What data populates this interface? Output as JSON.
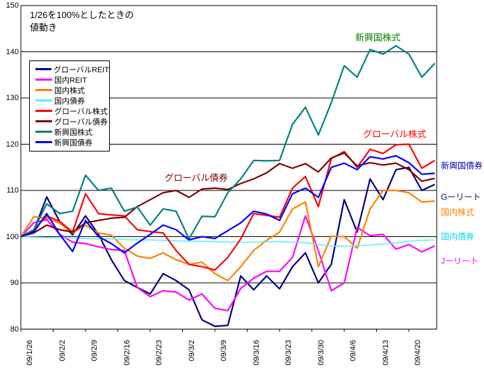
{
  "title": {
    "line1": "1/26を100%としたときの",
    "line2": "値動き"
  },
  "chart_data": {
    "type": "line",
    "title": "1/26を100%としたときの値動き",
    "y_axis": {
      "min": 80,
      "max": 150,
      "step": 10,
      "ticks": [
        150,
        140,
        130,
        120,
        110,
        100,
        90,
        80
      ]
    },
    "x_axis": {
      "tick_labels": [
        "09/1/26",
        "09/2/2",
        "09/2/9",
        "09/2/16",
        "09/2/23",
        "09/3/2",
        "09/3/9",
        "09/3/16",
        "09/3/23",
        "09/3/30",
        "09/4/6",
        "09/4/13",
        "09/4/20"
      ],
      "days_per_tick": 5,
      "total_days": 64
    },
    "sample_days": [
      0,
      2,
      4,
      6,
      8,
      10,
      12,
      14,
      16,
      18,
      20,
      22,
      24,
      26,
      28,
      30,
      32,
      34,
      36,
      38,
      40,
      42,
      44,
      46,
      48,
      50,
      52,
      54,
      56,
      58,
      60,
      62,
      64
    ],
    "series": [
      {
        "name": "グローバルREIT",
        "color": "#000080",
        "values": [
          100,
          101.3,
          108.6,
          103.3,
          100.4,
          104.5,
          100.5,
          95,
          90.5,
          89,
          87.6,
          92,
          90.5,
          88.5,
          82,
          80.6,
          80.8,
          91.5,
          88.5,
          91.5,
          88.7,
          93.5,
          96.5,
          90,
          94,
          108,
          101,
          112.5,
          108,
          114.5,
          115,
          110,
          111.3
        ]
      },
      {
        "name": "国内REIT",
        "color": "#FF00FF",
        "values": [
          100,
          103,
          103.7,
          100.5,
          98.8,
          98.5,
          97.8,
          97.2,
          97,
          89,
          87,
          88.3,
          88,
          86.3,
          87.6,
          84.5,
          84,
          88.8,
          91,
          92.5,
          92.5,
          95.5,
          104.5,
          97,
          88.3,
          90,
          102,
          100.2,
          100.5,
          97.3,
          98.3,
          96.7,
          98
        ]
      },
      {
        "name": "国内株式",
        "color": "#FF8000",
        "values": [
          100,
          104.3,
          104,
          102.9,
          100.8,
          102.5,
          100.8,
          100.3,
          97.5,
          95.8,
          95.3,
          96.5,
          95,
          94,
          94.5,
          92,
          90.5,
          93.5,
          97,
          99.2,
          101,
          106,
          107.5,
          93.5,
          100.1,
          100,
          97.5,
          106,
          110,
          110,
          109.5,
          107.5,
          107.7
        ]
      },
      {
        "name": "国内債券",
        "color": "#55EEFF",
        "values": [
          100,
          99.9,
          99.8,
          99.7,
          99.7,
          99.6,
          99.5,
          99.5,
          99.4,
          99.3,
          99.3,
          99.2,
          99.1,
          99,
          99,
          98.9,
          98.8,
          98.8,
          98.8,
          98.9,
          98.9,
          98.8,
          98.7,
          98.3,
          98,
          97.9,
          98,
          98.2,
          98.4,
          98.6,
          99,
          99.2,
          99.3
        ]
      },
      {
        "name": "グローバル株式",
        "color": "#FF0000",
        "values": [
          100,
          101.5,
          104.5,
          103.3,
          101,
          109.3,
          105,
          104.7,
          104.5,
          101.5,
          101.1,
          100.8,
          97,
          94,
          93.5,
          92.8,
          95.5,
          99.5,
          105,
          104.6,
          104.2,
          110.5,
          113,
          106.5,
          116.9,
          118.4,
          115,
          118.9,
          118,
          119.9,
          120,
          114.8,
          116.5
        ]
      },
      {
        "name": "グローバル債券",
        "color": "#800000",
        "values": [
          100,
          100.8,
          102.5,
          101.5,
          101,
          103,
          103.5,
          104,
          104.2,
          106.5,
          108,
          109.5,
          110,
          108.5,
          110.3,
          110.5,
          110.2,
          111.5,
          112.5,
          113.8,
          115.8,
          114.8,
          115.8,
          114,
          117,
          118.1,
          115.3,
          116,
          115.5,
          115.9,
          114.5,
          112,
          112.6
        ]
      },
      {
        "name": "新興国株式",
        "color": "#008080",
        "values": [
          100,
          101.5,
          107.1,
          105,
          105.5,
          113.3,
          110,
          110.5,
          105.5,
          106.4,
          102.5,
          106,
          105.5,
          99.5,
          104.4,
          104.3,
          109.5,
          112.5,
          116.5,
          116.4,
          116.5,
          124.3,
          128,
          122,
          129,
          137,
          134.5,
          140.5,
          139.5,
          141.3,
          139.5,
          134.5,
          137.5
        ]
      },
      {
        "name": "新興国債券",
        "color": "#0000FF",
        "values": [
          100,
          101,
          105,
          100.5,
          96.8,
          103.5,
          100,
          98.5,
          96.5,
          98.6,
          100.5,
          102.5,
          101.5,
          99.3,
          100,
          99.6,
          101.3,
          103,
          105.5,
          104.9,
          103.5,
          109.3,
          110.5,
          108.5,
          115,
          115.9,
          114.5,
          117.3,
          116.8,
          117.5,
          116,
          113.5,
          113.7
        ]
      }
    ],
    "legend": {
      "position": "upper-left-inside",
      "items": [
        {
          "label": "グローバルREIT",
          "color": "#000080"
        },
        {
          "label": "国内REIT",
          "color": "#FF00FF"
        },
        {
          "label": "国内株式",
          "color": "#FF8000"
        },
        {
          "label": "国内債券",
          "color": "#55EEFF"
        },
        {
          "label": "グローバル株式",
          "color": "#FF0000"
        },
        {
          "label": "グローバル債券",
          "color": "#800000"
        },
        {
          "label": "新興国株式",
          "color": "#008080"
        },
        {
          "label": "新興国債券",
          "color": "#0000FF"
        }
      ]
    },
    "annotations": [
      {
        "text": "新興国株式",
        "color": "#008000",
        "day": 55.2,
        "value": 143.2
      },
      {
        "text": "グローバル株式",
        "color": "#FF0000",
        "day": 57.8,
        "value": 122.3
      },
      {
        "text": "グローバル債券",
        "color": "#800000",
        "day": 27.1,
        "value": 112.9
      }
    ],
    "right_labels": [
      {
        "text": "新興国債券",
        "color": "#0000C0",
        "value": 115.4
      },
      {
        "text": "Gーリート",
        "color": "#000080",
        "value": 108.6
      },
      {
        "text": "国内株式",
        "color": "#FF8000",
        "value": 105.3
      },
      {
        "text": "国内債券",
        "color": "#00D8F0",
        "value": 100.1
      },
      {
        "text": "Jーリート",
        "color": "#FF00FF",
        "value": 94.8
      }
    ],
    "grid": "horizontal-black",
    "plot_border": "black"
  }
}
